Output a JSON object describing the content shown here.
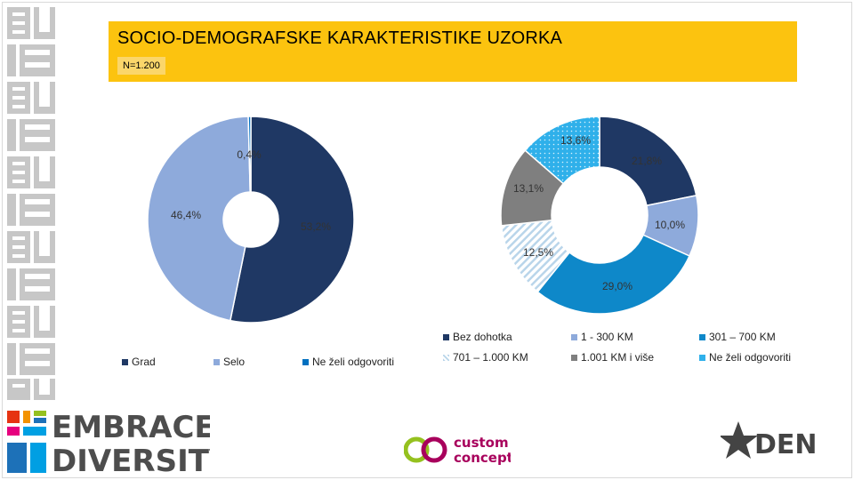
{
  "header": {
    "title": "SOCIO-DEMOGRAFSKE KARAKTERISTIKE UZORKA",
    "sample_size": "N=1.200",
    "bg_color": "#fcc30f"
  },
  "chart_data": [
    {
      "type": "pie",
      "variant": "donut",
      "categories": [
        "Grad",
        "Selo",
        "Ne želi odgovoriti"
      ],
      "values": [
        53.2,
        46.4,
        0.4
      ],
      "labels": [
        "53,2%",
        "46,4%",
        "0,4%"
      ],
      "colors": [
        "#1f3864",
        "#8eaadb",
        "#0070c0"
      ],
      "legend_position": "bottom"
    },
    {
      "type": "pie",
      "variant": "donut",
      "categories": [
        "Bez dohotka",
        "1 - 300 KM",
        "301 – 700 KM",
        "701 – 1.000 KM",
        "1.001 KM i više",
        "Ne želi odgovoriti"
      ],
      "values": [
        21.8,
        10.0,
        29.0,
        12.5,
        13.1,
        13.6
      ],
      "labels": [
        "21,8%",
        "10,0%",
        "29,0%",
        "12,5%",
        "13,1%",
        "13,6%"
      ],
      "colors": [
        "#1f3864",
        "#8eaadb",
        "#0e88c9",
        "#cfe2ef",
        "#7f7f7f",
        "#2fb0ea"
      ],
      "legend_position": "top-right"
    }
  ],
  "logos": {
    "embrace_line1": "EMBRACE",
    "embrace_line2": "DIVERSITY",
    "bi": "BiH",
    "eu": "EU",
    "custom_line1": "custom",
    "custom_line2": "concept",
    "den": "DEN"
  }
}
